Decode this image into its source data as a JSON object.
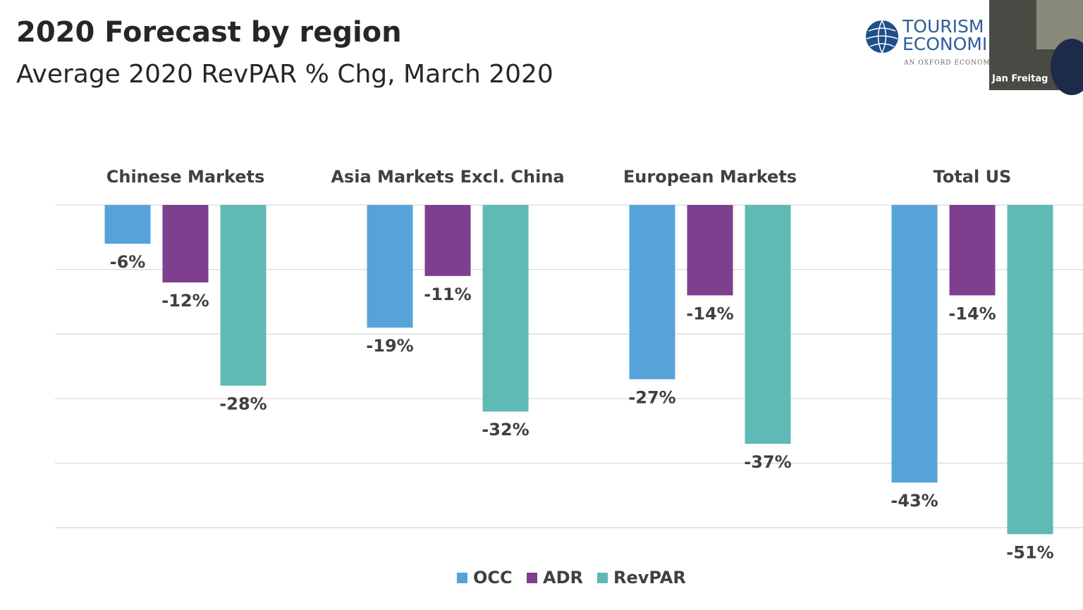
{
  "chart_data": {
    "type": "grouped-bar",
    "title": "2020 Forecast by region",
    "subtitle": "Average 2020 RevPAR % Chg, March 2020",
    "categories": [
      "Chinese Markets",
      "Asia Markets Excl. China",
      "European Markets",
      "Total US"
    ],
    "series": [
      {
        "name": "OCC",
        "color": "#56a3d9",
        "values": [
          -6,
          -19,
          -27,
          -43
        ],
        "value_labels": [
          "-6%",
          "-19%",
          "-27%",
          "-43%"
        ]
      },
      {
        "name": "ADR",
        "color": "#7f3f8f",
        "values": [
          -12,
          -11,
          -14,
          -14
        ],
        "value_labels": [
          "-12%",
          "-11%",
          "-14%",
          "-14%"
        ]
      },
      {
        "name": "RevPAR",
        "color": "#5fbab5",
        "values": [
          -28,
          -32,
          -37,
          -51
        ],
        "value_labels": [
          "-28%",
          "-32%",
          "-37%",
          "-51%"
        ]
      }
    ],
    "ylim": [
      -55,
      0
    ],
    "yticks": [
      0,
      -10,
      -20,
      -30,
      -40,
      -50
    ],
    "grid": true,
    "legend": "bottom"
  },
  "logo": {
    "line1": "TOURISM",
    "line2": "ECONOMI",
    "tagline": "AN OXFORD ECONOM"
  },
  "video": {
    "name": "Jan Freitag"
  }
}
